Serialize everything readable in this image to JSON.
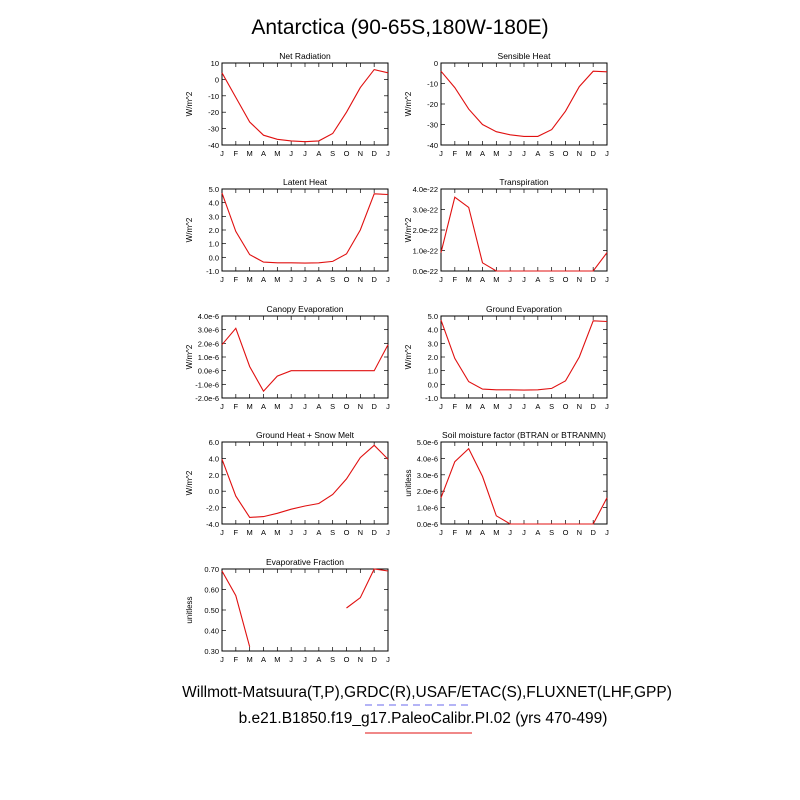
{
  "figure": {
    "title": "Antarctica (90-65S,180W-180E)",
    "legend": {
      "obs_label": "Willmott-Matsuura(T,P),GRDC(R),USAF/ETAC(S),FLUXNET(LHF,GPP)",
      "model_label": "b.e21.B1850.f19_g17.PaleoCalibr.PI.02 (yrs 470-499)",
      "obs_color": "#6a6aee",
      "model_color": "#e01010"
    }
  },
  "month_labels": [
    "J",
    "F",
    "M",
    "A",
    "M",
    "J",
    "J",
    "A",
    "S",
    "O",
    "N",
    "D",
    "J"
  ],
  "chart_data": [
    {
      "type": "line",
      "title": "Net Radiation",
      "ylabel": "W/m^2",
      "ylim": [
        -40,
        10
      ],
      "yticks": [
        -40,
        -30,
        -20,
        -10,
        0,
        10
      ],
      "ytick_labels": [
        "-40",
        "-30",
        "-20",
        "-10",
        "0",
        "10"
      ],
      "series": [
        {
          "color": "#e01010",
          "values": [
            4,
            -11,
            -26,
            -34,
            -36.5,
            -37.5,
            -38,
            -37.5,
            -33,
            -20,
            -5,
            6,
            4
          ]
        }
      ]
    },
    {
      "type": "line",
      "title": "Sensible Heat",
      "ylabel": "W/m^2",
      "ylim": [
        -40,
        0
      ],
      "yticks": [
        -40,
        -30,
        -20,
        -10,
        0
      ],
      "ytick_labels": [
        "-40",
        "-30",
        "-20",
        "-10",
        "0"
      ],
      "series": [
        {
          "color": "#e01010",
          "values": [
            -4,
            -12,
            -22.5,
            -30,
            -33.5,
            -35,
            -35.8,
            -35.8,
            -32.5,
            -23.5,
            -11.5,
            -4,
            -4.3
          ]
        }
      ]
    },
    {
      "type": "line",
      "title": "Latent Heat",
      "ylabel": "W/m^2",
      "ylim": [
        -1,
        5
      ],
      "yticks": [
        -1,
        0,
        1,
        2,
        3,
        4,
        5
      ],
      "ytick_labels": [
        "-1.0",
        "0.0",
        "1.0",
        "2.0",
        "3.0",
        "4.0",
        "5.0"
      ],
      "series": [
        {
          "color": "#e01010",
          "values": [
            4.7,
            1.9,
            0.2,
            -0.35,
            -0.4,
            -0.4,
            -0.42,
            -0.4,
            -0.3,
            0.25,
            2.0,
            4.65,
            4.6
          ]
        }
      ]
    },
    {
      "type": "line",
      "title": "Transpiration",
      "ylabel": "W/m^2",
      "ylim": [
        0,
        4e-22
      ],
      "yticks": [
        0,
        1e-22,
        2e-22,
        3e-22,
        4e-22
      ],
      "ytick_labels": [
        "0.0e-22",
        "1.0e-22",
        "2.0e-22",
        "3.0e-22",
        "4.0e-22"
      ],
      "series": [
        {
          "color": "#e01010",
          "values": [
            9e-23,
            3.6e-22,
            3.1e-22,
            4e-23,
            0,
            0,
            0,
            0,
            0,
            0,
            0,
            0,
            9e-23
          ]
        }
      ]
    },
    {
      "type": "line",
      "title": "Canopy Evaporation",
      "ylabel": "W/m^2",
      "ylim": [
        -2e-06,
        4e-06
      ],
      "yticks": [
        -2e-06,
        -1e-06,
        0,
        1e-06,
        2e-06,
        3e-06,
        4e-06
      ],
      "ytick_labels": [
        "-2.0e-6",
        "-1.0e-6",
        "0.0e-6",
        "1.0e-6",
        "2.0e-6",
        "3.0e-6",
        "4.0e-6"
      ],
      "series": [
        {
          "color": "#e01010",
          "values": [
            1.9e-06,
            3.1e-06,
            3e-07,
            -1.5e-06,
            -4e-07,
            0,
            0,
            0,
            0,
            0,
            0,
            0,
            1.9e-06
          ]
        }
      ]
    },
    {
      "type": "line",
      "title": "Ground Evaporation",
      "ylabel": "W/m^2",
      "ylim": [
        -1,
        5
      ],
      "yticks": [
        -1,
        0,
        1,
        2,
        3,
        4,
        5
      ],
      "ytick_labels": [
        "-1.0",
        "0.0",
        "1.0",
        "2.0",
        "3.0",
        "4.0",
        "5.0"
      ],
      "series": [
        {
          "color": "#e01010",
          "values": [
            4.7,
            1.9,
            0.2,
            -0.35,
            -0.4,
            -0.4,
            -0.42,
            -0.4,
            -0.3,
            0.25,
            2.0,
            4.65,
            4.6
          ]
        }
      ]
    },
    {
      "type": "line",
      "title": "Ground Heat + Snow Melt",
      "ylabel": "W/m^2",
      "ylim": [
        -4,
        6
      ],
      "yticks": [
        -4,
        -2,
        0,
        2,
        4,
        6
      ],
      "ytick_labels": [
        "-4.0",
        "-2.0",
        "0.0",
        "2.0",
        "4.0",
        "6.0"
      ],
      "series": [
        {
          "color": "#e01010",
          "values": [
            3.9,
            -0.6,
            -3.2,
            -3.1,
            -2.7,
            -2.2,
            -1.8,
            -1.5,
            -0.4,
            1.5,
            4.1,
            5.6,
            3.9
          ]
        }
      ]
    },
    {
      "type": "line",
      "title": "Soil moisture factor (BTRAN or BTRANMN)",
      "ylabel": "unitless",
      "ylim": [
        0,
        5e-06
      ],
      "yticks": [
        0,
        1e-06,
        2e-06,
        3e-06,
        4e-06,
        5e-06
      ],
      "ytick_labels": [
        "0.0e-6",
        "1.0e-6",
        "2.0e-6",
        "3.0e-6",
        "4.0e-6",
        "5.0e-6"
      ],
      "series": [
        {
          "color": "#e01010",
          "values": [
            1.6e-06,
            3.8e-06,
            4.6e-06,
            2.9e-06,
            5e-07,
            0,
            0,
            0,
            0,
            0,
            0,
            0,
            1.6e-06
          ]
        }
      ]
    },
    {
      "type": "line",
      "title": "Evaporative Fraction",
      "ylabel": "unitless",
      "ylim": [
        0.3,
        0.7
      ],
      "yticks": [
        0.3,
        0.4,
        0.5,
        0.6,
        0.7
      ],
      "ytick_labels": [
        "0.30",
        "0.40",
        "0.50",
        "0.60",
        "0.70"
      ],
      "series": [
        {
          "color": "#e01010",
          "values": [
            0.69,
            0.57,
            0.32,
            null,
            null,
            null,
            null,
            null,
            null,
            0.51,
            0.56,
            0.7,
            0.69
          ]
        }
      ]
    }
  ]
}
